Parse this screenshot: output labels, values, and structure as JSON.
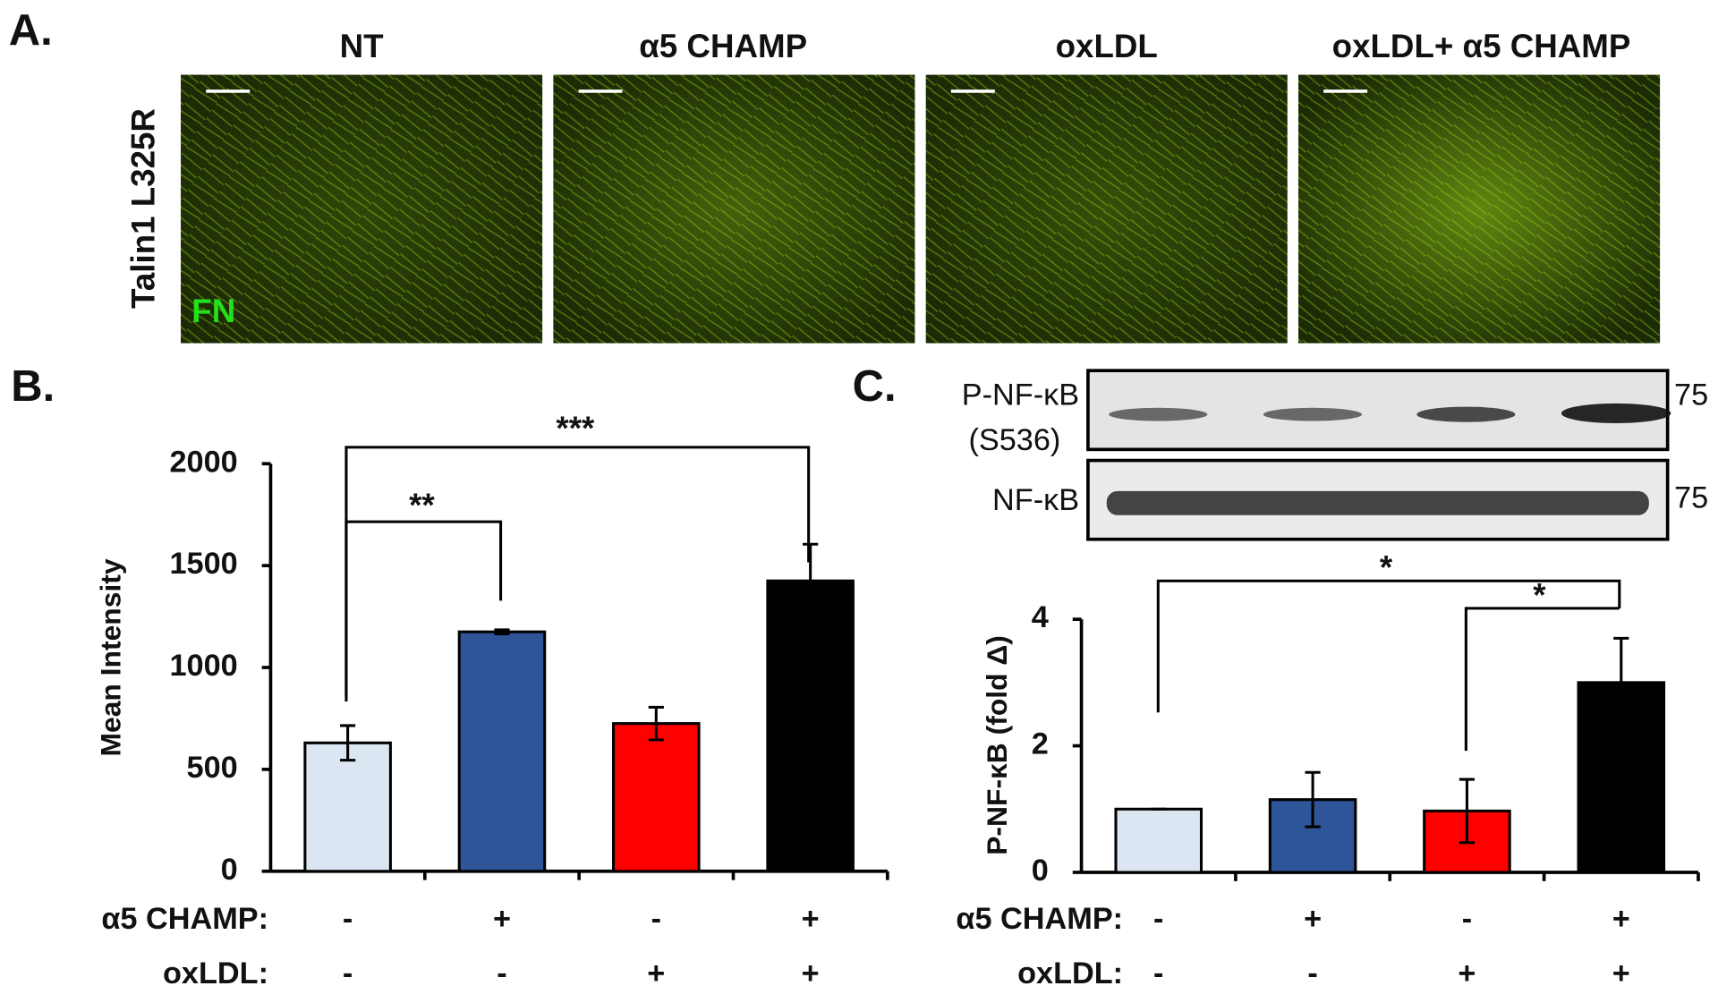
{
  "panels": {
    "a": "A.",
    "b": "B.",
    "c": "C."
  },
  "images": {
    "titles": [
      "NT",
      "α5 CHAMP",
      "oxLDL",
      "oxLDL+ α5 CHAMP"
    ],
    "row_label": "Talin1 L325R",
    "stain": "FN"
  },
  "blot": {
    "rows": [
      {
        "label": [
          "P-NF-κB",
          "(S536)"
        ],
        "marker": "75"
      },
      {
        "label": [
          "NF-κB"
        ],
        "marker": "75"
      }
    ]
  },
  "chart_data": [
    {
      "type": "bar",
      "ylabel": "Mean Intensity",
      "values": [
        630,
        1175,
        725,
        1425
      ],
      "errors": [
        85,
        10,
        80,
        180
      ],
      "colors": [
        "#dce6f2",
        "#2e5597",
        "#ff0000",
        "#000000"
      ],
      "ylim": [
        0,
        2000
      ],
      "yticks": [
        0,
        500,
        1000,
        1500,
        2000
      ],
      "rows": [
        {
          "label": "α5 CHAMP:",
          "values": [
            "-",
            "+",
            "-",
            "+"
          ]
        },
        {
          "label": "oxLDL:",
          "values": [
            "-",
            "-",
            "+",
            "+"
          ]
        }
      ],
      "annotations": [
        "**",
        "***"
      ]
    },
    {
      "type": "bar",
      "ylabel": "P-NF-κB (fold Δ)",
      "values": [
        1.0,
        1.15,
        0.97,
        3.0
      ],
      "errors": [
        0,
        0.43,
        0.5,
        0.7
      ],
      "colors": [
        "#dce6f2",
        "#2e5597",
        "#ff0000",
        "#000000"
      ],
      "ylim": [
        0,
        4
      ],
      "yticks": [
        0,
        2,
        4
      ],
      "rows": [
        {
          "label": "α5 CHAMP:",
          "values": [
            "-",
            "+",
            "-",
            "+"
          ]
        },
        {
          "label": "oxLDL:",
          "values": [
            "-",
            "-",
            "+",
            "+"
          ]
        }
      ],
      "annotations": [
        "*",
        "*"
      ]
    }
  ]
}
